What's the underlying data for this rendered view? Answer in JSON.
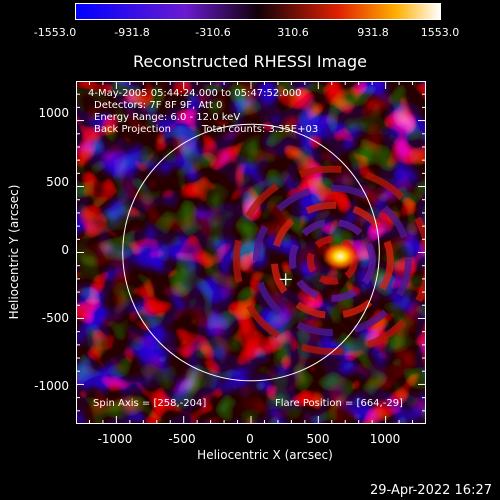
{
  "chart_data": {
    "type": "heatmap",
    "title": "Reconstructed RHESSI Image",
    "xlabel": "Heliocentric X (arcsec)",
    "ylabel": "Heliocentric Y (arcsec)",
    "xlim": [
      -1300,
      1300
    ],
    "ylim": [
      -1300,
      1300
    ],
    "x_ticks": [
      "-1000",
      "-500",
      "0",
      "500",
      "1000"
    ],
    "y_ticks": [
      "1000",
      "500",
      "0",
      "-500",
      "-1000"
    ],
    "colorbar": {
      "min": -1553.0,
      "max": 1553.0,
      "ticks": [
        "-1553.0",
        "-931.8",
        "-310.6",
        "310.6",
        "931.8",
        "1553.0"
      ]
    },
    "annotations": {
      "time_range": "4-May-2005 05:44:24.000 to 05:47:52.000",
      "detectors": "Detectors: 7F 8F 9F, Att 0",
      "energy": "Energy Range: 6.0 - 12.0 keV",
      "method": "Back Projection",
      "counts": "Total counts: 3.35E+03",
      "spin_axis": "Spin Axis = [258,-204]",
      "flare_position": "Flare Position = [664,-29]"
    },
    "solar_disk_radius_arcsec": 953,
    "spin_axis": [
      258,
      -204
    ],
    "flare_position": [
      664,
      -29
    ]
  },
  "footer": {
    "timestamp": "29-Apr-2022 16:27"
  }
}
